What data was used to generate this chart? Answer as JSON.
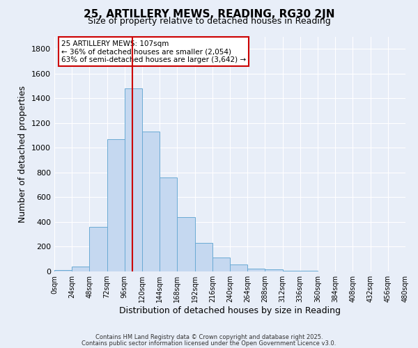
{
  "title": "25, ARTILLERY MEWS, READING, RG30 2JN",
  "subtitle": "Size of property relative to detached houses in Reading",
  "xlabel": "Distribution of detached houses by size in Reading",
  "ylabel": "Number of detached properties",
  "bar_color": "#c5d8f0",
  "bar_edge_color": "#6aaad4",
  "background_color": "#e8eef8",
  "grid_color": "#ffffff",
  "bin_edges": [
    0,
    24,
    48,
    72,
    96,
    120,
    144,
    168,
    192,
    216,
    240,
    264,
    288,
    312,
    336,
    360,
    384,
    408,
    432,
    456,
    480
  ],
  "bar_heights": [
    10,
    40,
    360,
    1070,
    1480,
    1130,
    760,
    440,
    230,
    115,
    55,
    25,
    15,
    5,
    3,
    2,
    1,
    1,
    0,
    0
  ],
  "red_line_x": 107,
  "red_line_color": "#cc0000",
  "annotation_title": "25 ARTILLERY MEWS: 107sqm",
  "annotation_line1": "← 36% of detached houses are smaller (2,054)",
  "annotation_line2": "63% of semi-detached houses are larger (3,642) →",
  "annotation_box_color": "#ffffff",
  "annotation_box_edge": "#cc0000",
  "ylim": [
    0,
    1900
  ],
  "yticks": [
    0,
    200,
    400,
    600,
    800,
    1000,
    1200,
    1400,
    1600,
    1800
  ],
  "footnote1": "Contains HM Land Registry data © Crown copyright and database right 2025.",
  "footnote2": "Contains public sector information licensed under the Open Government Licence v3.0."
}
